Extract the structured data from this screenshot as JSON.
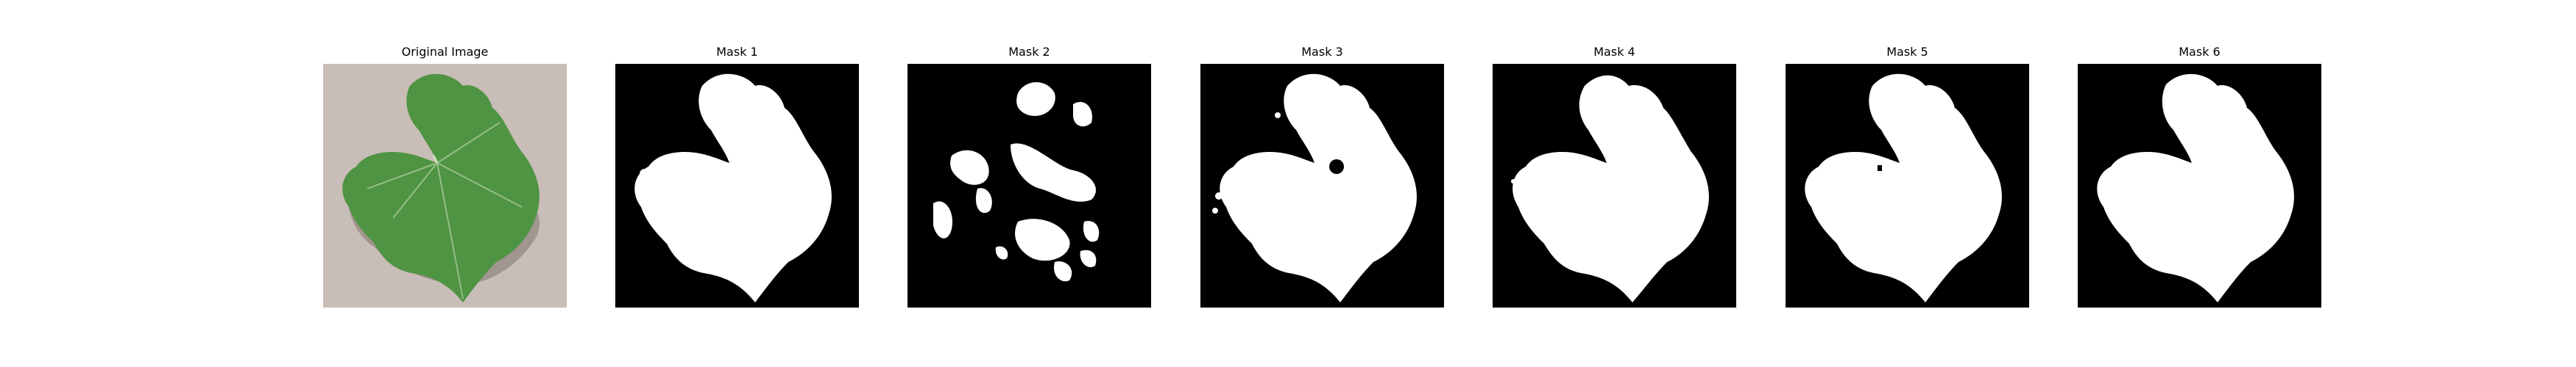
{
  "figure": {
    "panels": [
      {
        "title": "Original Image",
        "kind": "photo"
      },
      {
        "title": "Mask 1",
        "kind": "mask",
        "variant": "clean"
      },
      {
        "title": "Mask 2",
        "kind": "mask",
        "variant": "fragmented"
      },
      {
        "title": "Mask 3",
        "kind": "mask",
        "variant": "specks"
      },
      {
        "title": "Mask 4",
        "kind": "mask",
        "variant": "clean"
      },
      {
        "title": "Mask 5",
        "kind": "mask",
        "variant": "clean"
      },
      {
        "title": "Mask 6",
        "kind": "mask",
        "variant": "clean"
      }
    ],
    "colors": {
      "background_bg": "#c9bdb7",
      "leaf": "#4f9443",
      "leaf_dark": "#3b7a32",
      "mask_bg": "#000000",
      "mask_fg": "#ffffff"
    }
  }
}
